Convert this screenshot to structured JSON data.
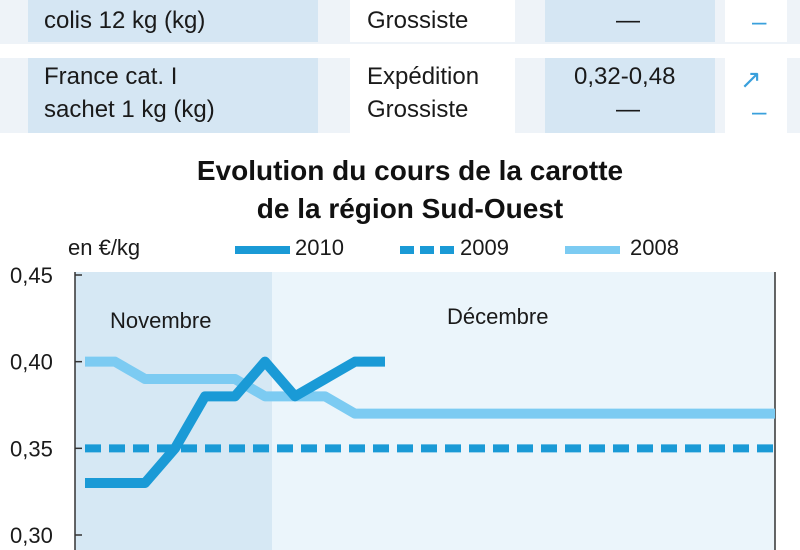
{
  "table": {
    "rows": [
      {
        "product_line1": "",
        "product_line2": "colis 12 kg (kg)",
        "stage1": "",
        "stage2": "Grossiste",
        "price1": "",
        "price2": "—",
        "trend1": "",
        "trend2": "–"
      },
      {
        "product_line1": "France cat. I",
        "product_line2": "sachet 1 kg (kg)",
        "stage1": "Expédition",
        "stage2": "Grossiste",
        "price1": "0,32-0,48",
        "price2": "—",
        "trend1": "↗",
        "trend2": "–"
      }
    ]
  },
  "chart_data": {
    "type": "line",
    "title_line1": "Evolution du cours de la carotte",
    "title_line2": "de la région Sud-Ouest",
    "ylabel": "en €/kg",
    "ylim": [
      0.3,
      0.45
    ],
    "yticks": [
      "0,45",
      "0,40",
      "0,35",
      "0,30"
    ],
    "ytick_values": [
      0.45,
      0.4,
      0.35,
      0.3
    ],
    "months": [
      "Novembre",
      "Décembre"
    ],
    "legend_position": "top",
    "series": [
      {
        "name": "2010",
        "style": "solid",
        "color": "#1a9ad6",
        "x": [
          0,
          1,
          2,
          3,
          4,
          5,
          6,
          7,
          8,
          9,
          10
        ],
        "y": [
          0.33,
          0.33,
          0.33,
          0.35,
          0.38,
          0.38,
          0.4,
          0.38,
          0.39,
          0.4,
          0.4
        ]
      },
      {
        "name": "2009",
        "style": "dashed",
        "color": "#1a9ad6",
        "x": [
          0,
          1,
          2,
          3,
          4,
          5,
          6,
          7,
          8,
          9,
          10,
          11,
          12,
          13,
          14,
          15,
          16,
          17,
          18,
          19,
          20,
          21,
          22,
          23
        ],
        "y": [
          0.35,
          0.35,
          0.35,
          0.35,
          0.35,
          0.35,
          0.35,
          0.35,
          0.35,
          0.35,
          0.35,
          0.35,
          0.35,
          0.35,
          0.35,
          0.35,
          0.35,
          0.35,
          0.35,
          0.35,
          0.35,
          0.35,
          0.35,
          0.35
        ]
      },
      {
        "name": "2008",
        "style": "solid",
        "color": "#7ccbf2",
        "x": [
          0,
          1,
          2,
          3,
          4,
          5,
          6,
          7,
          8,
          9,
          10,
          11,
          12,
          13,
          14,
          15,
          16,
          17,
          18,
          19,
          20,
          21,
          22,
          23
        ],
        "y": [
          0.4,
          0.4,
          0.39,
          0.39,
          0.39,
          0.39,
          0.38,
          0.38,
          0.38,
          0.37,
          0.37,
          0.37,
          0.37,
          0.37,
          0.37,
          0.37,
          0.37,
          0.37,
          0.37,
          0.37,
          0.37,
          0.37,
          0.37,
          0.37
        ]
      }
    ]
  }
}
